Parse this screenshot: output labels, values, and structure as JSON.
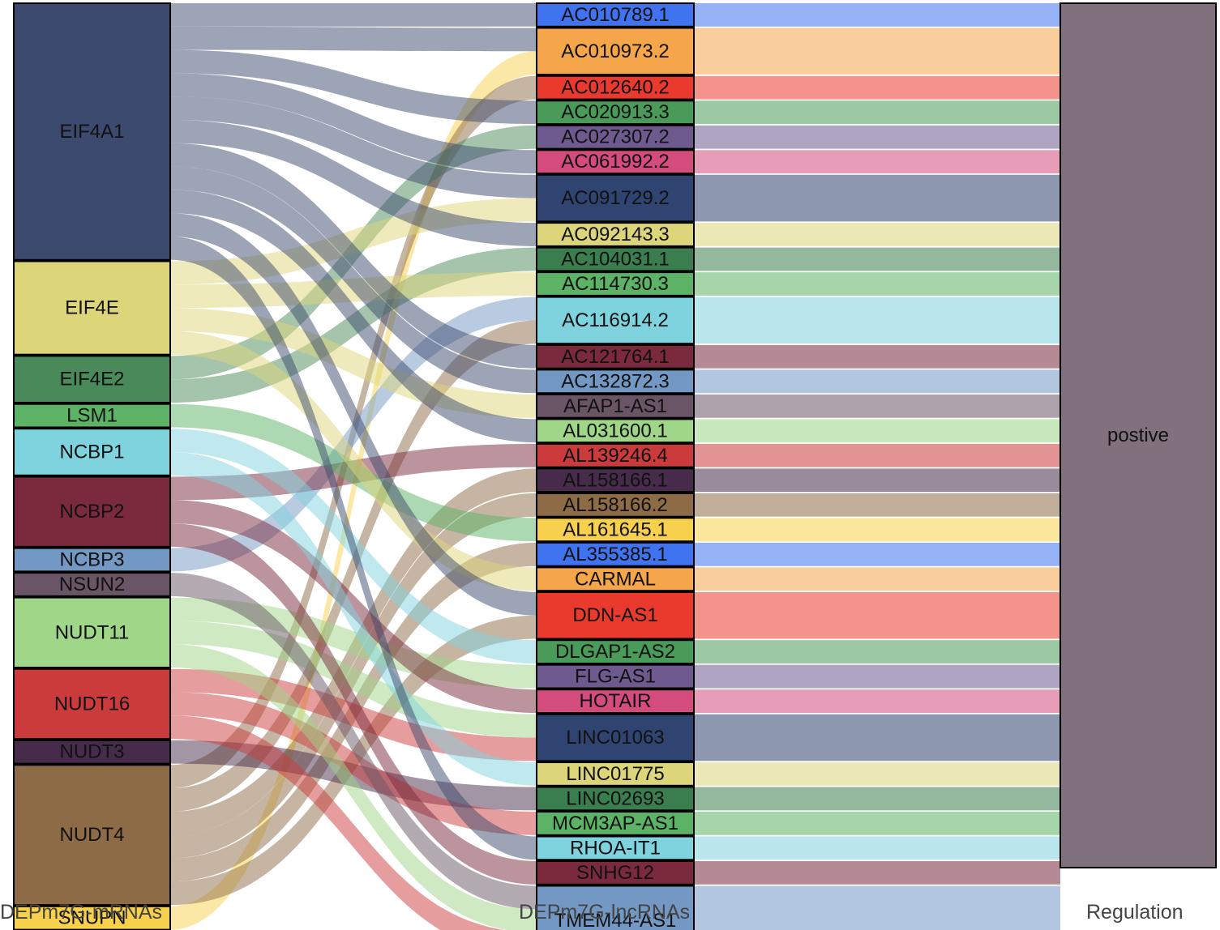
{
  "chart_data": {
    "type": "sankey",
    "axes": [
      "DEPm7G-mRNAs",
      "DEPm7G-lncRNAs",
      "Regulation"
    ],
    "mrnas": [
      {
        "name": "EIF4A1",
        "color": "#3b4a6e"
      },
      {
        "name": "EIF4E",
        "color": "#ddd57a"
      },
      {
        "name": "EIF4E2",
        "color": "#4a8a5a"
      },
      {
        "name": "LSM1",
        "color": "#5cb365"
      },
      {
        "name": "NCBP1",
        "color": "#7fd3df"
      },
      {
        "name": "NCBP2",
        "color": "#7a2a3c"
      },
      {
        "name": "NCBP3",
        "color": "#7398c4"
      },
      {
        "name": "NSUN2",
        "color": "#6a5566"
      },
      {
        "name": "NUDT11",
        "color": "#9fd687"
      },
      {
        "name": "NUDT16",
        "color": "#cc3b3b"
      },
      {
        "name": "NUDT3",
        "color": "#462c4a"
      },
      {
        "name": "NUDT4",
        "color": "#8e6b47"
      },
      {
        "name": "SNUPN",
        "color": "#f7d14d"
      }
    ],
    "lncrnas": [
      {
        "name": "AC010789.1",
        "color": "#3f73f0",
        "links": [
          "EIF4A1"
        ]
      },
      {
        "name": "AC010973.2",
        "color": "#f5a54a",
        "links": [
          "EIF4A1",
          "SNUPN"
        ]
      },
      {
        "name": "AC012640.2",
        "color": "#ea3a2e",
        "links": [
          "NUDT4"
        ]
      },
      {
        "name": "AC020913.3",
        "color": "#4a9a5a",
        "links": [
          "EIF4A1"
        ]
      },
      {
        "name": "AC027307.2",
        "color": "#6e5a8e",
        "links": [
          "EIF4E2"
        ]
      },
      {
        "name": "AC061992.2",
        "color": "#d44c7e",
        "links": [
          "EIF4A1"
        ]
      },
      {
        "name": "AC091729.2",
        "color": "#2f4470",
        "links": [
          "EIF4A1",
          "EIF4E"
        ]
      },
      {
        "name": "AC092143.3",
        "color": "#ddd57a",
        "links": [
          "EIF4A1"
        ]
      },
      {
        "name": "AC104031.1",
        "color": "#3a7d4e",
        "links": [
          "EIF4E2"
        ]
      },
      {
        "name": "AC114730.3",
        "color": "#5cb365",
        "links": [
          "EIF4E"
        ]
      },
      {
        "name": "AC116914.2",
        "color": "#7fd3df",
        "links": [
          "NCBP3",
          "NUDT4"
        ]
      },
      {
        "name": "AC121764.1",
        "color": "#7a2a3c",
        "links": [
          "EIF4A1"
        ]
      },
      {
        "name": "AC132872.3",
        "color": "#7398c4",
        "links": [
          "EIF4A1"
        ]
      },
      {
        "name": "AFAP1-AS1",
        "color": "#6a5566",
        "links": [
          "EIF4E"
        ]
      },
      {
        "name": "AL031600.1",
        "color": "#9fd687",
        "links": [
          "EIF4A1"
        ]
      },
      {
        "name": "AL139246.4",
        "color": "#cc3b3b",
        "links": [
          "NCBP2"
        ]
      },
      {
        "name": "AL158166.1",
        "color": "#462c4a",
        "links": [
          "NUDT4"
        ]
      },
      {
        "name": "AL158166.2",
        "color": "#8e6b47",
        "links": [
          "NUDT4"
        ]
      },
      {
        "name": "AL161645.1",
        "color": "#f7d14d",
        "links": [
          "LSM1"
        ]
      },
      {
        "name": "AL355385.1",
        "color": "#3f73f0",
        "links": [
          "NUDT4"
        ]
      },
      {
        "name": "CARMAL",
        "color": "#f5a54a",
        "links": [
          "EIF4E"
        ]
      },
      {
        "name": "DDN-AS1",
        "color": "#ea3a2e",
        "links": [
          "EIF4A1",
          "NUDT4"
        ]
      },
      {
        "name": "DLGAP1-AS2",
        "color": "#4a9a5a",
        "links": [
          "NCBP1"
        ]
      },
      {
        "name": "FLG-AS1",
        "color": "#6e5a8e",
        "links": [
          "NUDT11"
        ]
      },
      {
        "name": "HOTAIR",
        "color": "#d44c7e",
        "links": [
          "NCBP2"
        ]
      },
      {
        "name": "LINC01063",
        "color": "#2f4470",
        "links": [
          "NUDT11",
          "NUDT16"
        ]
      },
      {
        "name": "LINC01775",
        "color": "#ddd57a",
        "links": [
          "NCBP1"
        ]
      },
      {
        "name": "LINC02693",
        "color": "#3a7d4e",
        "links": [
          "NUDT3"
        ]
      },
      {
        "name": "MCM3AP-AS1",
        "color": "#5cb365",
        "links": [
          "NUDT16"
        ]
      },
      {
        "name": "RHOA-IT1",
        "color": "#7fd3df",
        "links": [
          "EIF4A1"
        ]
      },
      {
        "name": "SNHG12",
        "color": "#7a2a3c",
        "links": [
          "NCBP2"
        ]
      },
      {
        "name": "TMEM44-AS1",
        "color": "#7398c4",
        "links": [
          "NSUN2",
          "NUDT11",
          "NUDT16"
        ]
      }
    ],
    "regulation": {
      "name": "postive",
      "color": "#6b5869"
    }
  }
}
